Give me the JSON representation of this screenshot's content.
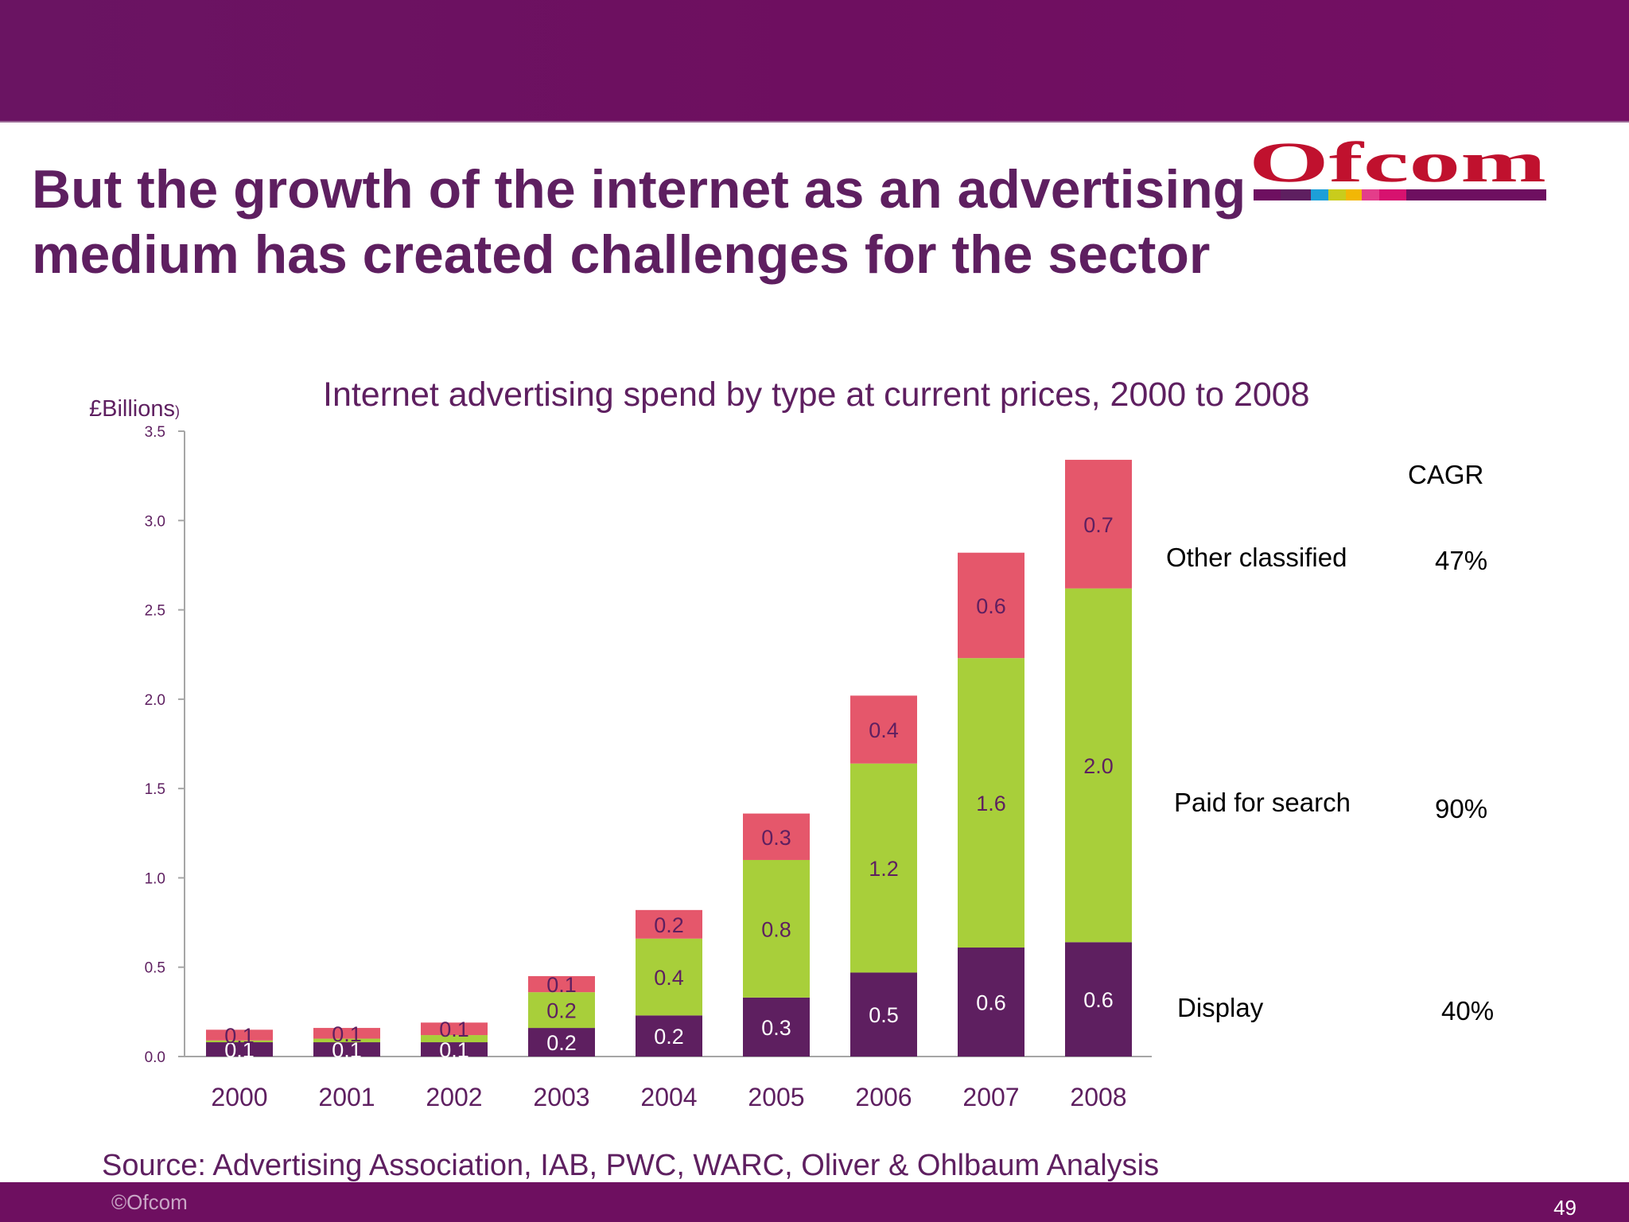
{
  "slide": {
    "headline_line1": "But the growth of the internet as an advertising",
    "headline_line2": "medium has created challenges for the sector",
    "source": "Source: Advertising Association, IAB, PWC, WARC, Oliver & Ohlbaum Analysis",
    "copyright": "©Ofcom",
    "page_number": "49",
    "logo_text": "Ofcom",
    "colors": {
      "band": "#6e0f60",
      "heading": "#5e1f60",
      "display": "#5e1f60",
      "search": "#a8cf3a",
      "classified": "#e5576b"
    }
  },
  "cagr": {
    "header": "CAGR",
    "items": [
      {
        "label": "Other classified",
        "value": "47%"
      },
      {
        "label": "Paid for search",
        "value": "90%"
      },
      {
        "label": "Display",
        "value": "40%"
      }
    ]
  },
  "chart_data": {
    "type": "bar",
    "stacked": true,
    "title": "Internet advertising  spend by type at current prices, 2000 to 2008",
    "ylabel": "£Billions",
    "ylabel_suffix": ")",
    "xlabel": "",
    "ylim": [
      0,
      3.5
    ],
    "yticks": [
      "0.0",
      "0.5",
      "1.0",
      "1.5",
      "2.0",
      "2.5",
      "3.0",
      "3.5"
    ],
    "categories": [
      "2000",
      "2001",
      "2002",
      "2003",
      "2004",
      "2005",
      "2006",
      "2007",
      "2008"
    ],
    "series": [
      {
        "name": "Display",
        "color": "#5e1f60",
        "label_color": "#ffffff",
        "values": [
          0.08,
          0.08,
          0.08,
          0.16,
          0.23,
          0.33,
          0.47,
          0.61,
          0.64
        ],
        "labels": [
          "0.1",
          "0.1",
          "0.1",
          "0.2",
          "0.2",
          "0.3",
          "0.5",
          "0.6",
          "0.6"
        ]
      },
      {
        "name": "Paid for search",
        "color": "#a8cf3a",
        "label_color": "#5e1f60",
        "values": [
          0.01,
          0.02,
          0.04,
          0.2,
          0.43,
          0.77,
          1.17,
          1.62,
          1.98
        ],
        "labels": [
          "",
          "",
          "",
          "0.2",
          "0.4",
          "0.8",
          "1.2",
          "1.6",
          "2.0"
        ]
      },
      {
        "name": "Other classified",
        "color": "#e5576b",
        "label_color": "#5e1f60",
        "values": [
          0.06,
          0.06,
          0.07,
          0.09,
          0.16,
          0.26,
          0.38,
          0.59,
          0.72
        ],
        "labels": [
          "0.1",
          "0.1",
          "0.1",
          "0.1",
          "0.2",
          "0.3",
          "0.4",
          "0.6",
          "0.7"
        ]
      }
    ],
    "legend": "right, with CAGR values"
  }
}
